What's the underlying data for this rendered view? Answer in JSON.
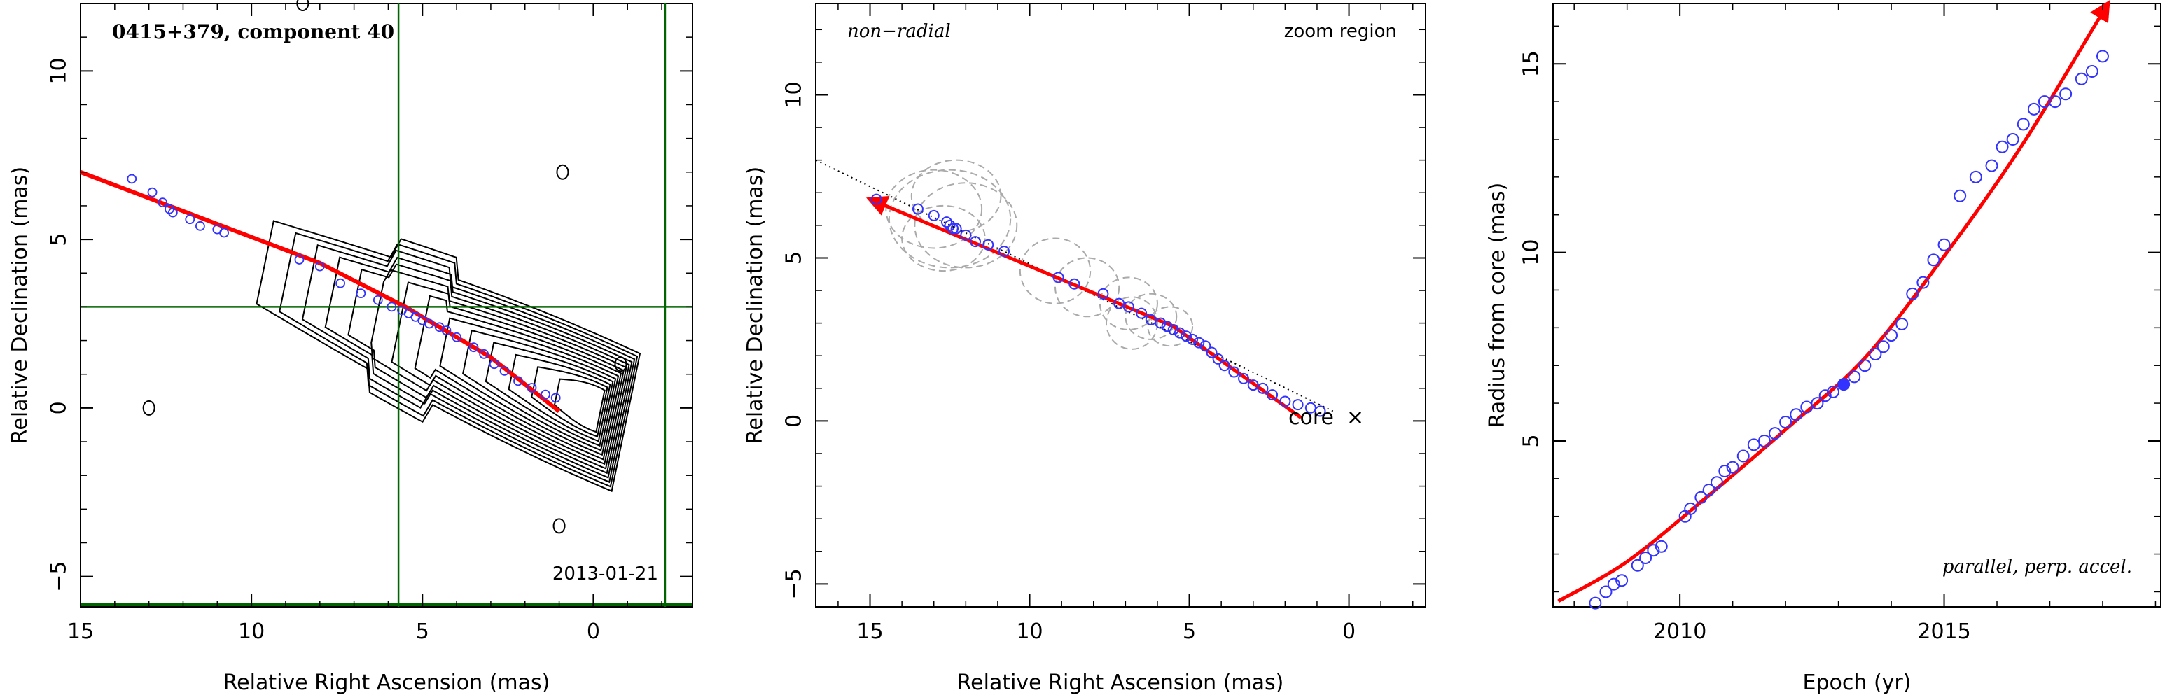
{
  "figure": {
    "panel1": {
      "title": "0415+379, component 40",
      "date_label": "2013-01-21",
      "xlabel": "Relative Right Ascension (mas)",
      "ylabel": "Relative Declination (mas)",
      "x_ticks": [
        "15",
        "10",
        "5",
        "0"
      ],
      "y_ticks": [
        "−5",
        "0",
        "5",
        "10"
      ]
    },
    "panel2": {
      "annot_left": "non−radial",
      "annot_right": "zoom region",
      "core_label": "core",
      "xlabel": "Relative Right Ascension (mas)",
      "ylabel": "Relative Declination (mas)",
      "x_ticks": [
        "15",
        "10",
        "5",
        "0"
      ],
      "y_ticks": [
        "−5",
        "0",
        "5",
        "10"
      ]
    },
    "panel3": {
      "annot": "parallel, perp. accel.",
      "xlabel": "Epoch (yr)",
      "ylabel": "Radius from core (mas)",
      "x_ticks": [
        "2010",
        "2015"
      ],
      "y_ticks": [
        "5",
        "10",
        "15"
      ]
    }
  },
  "colors": {
    "contour": "#000000",
    "fit_line": "#ff0000",
    "points": "#3333ff",
    "zoom_box": "#006400",
    "ellipses": "#aaaaaa"
  },
  "chart_data": [
    {
      "type": "scatter",
      "title": "0415+379, component 40",
      "xlabel": "Relative Right Ascension (mas)",
      "ylabel": "Relative Declination (mas)",
      "xlim": [
        15,
        -2.9
      ],
      "ylim": [
        -5.9,
        12
      ],
      "series": [
        {
          "x": [
            13.5,
            12.9,
            12.6,
            12.4,
            12.3,
            11.8,
            11.5,
            11.0,
            10.8,
            8.6,
            8.0,
            7.4,
            6.8,
            6.3,
            5.9,
            5.6,
            5.4,
            5.2,
            5.0,
            4.8,
            4.5,
            4.3,
            4.0,
            3.5,
            3.2,
            2.9,
            2.6,
            2.2,
            1.8,
            1.4,
            1.1
          ],
          "y": [
            6.8,
            6.4,
            6.1,
            5.9,
            5.8,
            5.6,
            5.4,
            5.3,
            5.2,
            4.4,
            4.2,
            3.7,
            3.4,
            3.2,
            3.0,
            2.9,
            2.8,
            2.7,
            2.6,
            2.5,
            2.4,
            2.3,
            2.1,
            1.8,
            1.6,
            1.3,
            1.1,
            0.8,
            0.6,
            0.4,
            0.3
          ]
        }
      ],
      "fit_line": {
        "x": [
          15,
          8,
          5.5,
          3,
          1.0
        ],
        "y": [
          7.0,
          4.3,
          3.0,
          1.5,
          -0.1
        ]
      },
      "zoom_region": {
        "x_left": 5.7,
        "x_right": -2.1,
        "y_bottom": -5.9,
        "y_top": 3.0
      }
    },
    {
      "type": "scatter",
      "xlabel": "Relative Right Ascension (mas)",
      "ylabel": "Relative Declination (mas)",
      "xlim": [
        16.7,
        -2.4
      ],
      "ylim": [
        -5.7,
        12.8
      ],
      "series": [
        {
          "x": [
            14.8,
            13.5,
            13.0,
            12.6,
            12.5,
            12.4,
            12.3,
            12.0,
            11.7,
            11.3,
            10.8,
            9.1,
            8.6,
            7.7,
            7.2,
            6.9,
            6.5,
            6.2,
            5.9,
            5.7,
            5.5,
            5.3,
            5.1,
            4.9,
            4.7,
            4.5,
            4.3,
            4.1,
            3.9,
            3.6,
            3.3,
            3.0,
            2.7,
            2.4,
            2.0,
            1.6,
            1.2,
            0.9
          ],
          "y": [
            6.8,
            6.5,
            6.3,
            6.1,
            6.0,
            5.9,
            5.9,
            5.7,
            5.5,
            5.4,
            5.2,
            4.4,
            4.2,
            3.9,
            3.6,
            3.5,
            3.3,
            3.1,
            3.0,
            2.9,
            2.8,
            2.7,
            2.6,
            2.5,
            2.4,
            2.3,
            2.1,
            1.9,
            1.7,
            1.5,
            1.3,
            1.1,
            1.0,
            0.8,
            0.6,
            0.5,
            0.4,
            0.3
          ]
        }
      ],
      "ellipses": [
        {
          "x": 12.5,
          "y": 6.2,
          "rx": 1.9,
          "ry": 1.5
        },
        {
          "x": 12.0,
          "y": 6.0,
          "rx": 1.6,
          "ry": 1.3
        },
        {
          "x": 13.0,
          "y": 6.5,
          "rx": 1.5,
          "ry": 1.2
        },
        {
          "x": 12.3,
          "y": 6.9,
          "rx": 1.4,
          "ry": 1.1
        },
        {
          "x": 12.7,
          "y": 5.6,
          "rx": 1.3,
          "ry": 1.0
        },
        {
          "x": 9.2,
          "y": 4.6,
          "rx": 1.1,
          "ry": 1.0
        },
        {
          "x": 8.2,
          "y": 4.1,
          "rx": 1.0,
          "ry": 0.9
        },
        {
          "x": 6.9,
          "y": 3.6,
          "rx": 0.9,
          "ry": 0.8
        },
        {
          "x": 6.2,
          "y": 3.2,
          "rx": 0.8,
          "ry": 0.7
        },
        {
          "x": 5.6,
          "y": 2.9,
          "rx": 0.7,
          "ry": 0.6
        },
        {
          "x": 6.8,
          "y": 3.0,
          "rx": 0.8,
          "ry": 0.8
        }
      ],
      "fit_line": {
        "x": [
          1.5,
          5.5,
          15.0
        ],
        "y": [
          0.1,
          2.9,
          6.8
        ]
      },
      "dotted_line": {
        "x": [
          0.5,
          16.7
        ],
        "y": [
          0.3,
          8.0
        ]
      },
      "core": {
        "x": 0.0,
        "y": 0.0
      }
    },
    {
      "type": "scatter",
      "xlabel": "Epoch (yr)",
      "ylabel": "Radius from core (mas)",
      "xlim": [
        2007.6,
        2019.1
      ],
      "ylim": [
        0.6,
        16.6
      ],
      "series": [
        {
          "x": [
            2008.4,
            2008.6,
            2008.75,
            2008.9,
            2009.2,
            2009.35,
            2009.5,
            2009.65,
            2010.1,
            2010.2,
            2010.4,
            2010.55,
            2010.7,
            2010.85,
            2011.0,
            2011.2,
            2011.4,
            2011.6,
            2011.8,
            2012.0,
            2012.2,
            2012.4,
            2012.6,
            2012.75,
            2012.9,
            2013.1,
            2013.3,
            2013.5,
            2013.7,
            2013.85,
            2014.0,
            2014.2,
            2014.4,
            2014.6,
            2014.8,
            2015.0,
            2015.3,
            2015.6,
            2015.9,
            2016.1,
            2016.3,
            2016.5,
            2016.7,
            2016.9,
            2017.1,
            2017.3,
            2017.6,
            2017.8,
            2018.0
          ],
          "y": [
            0.7,
            1.0,
            1.2,
            1.3,
            1.7,
            1.9,
            2.1,
            2.2,
            3.0,
            3.2,
            3.5,
            3.7,
            3.9,
            4.2,
            4.3,
            4.6,
            4.9,
            5.0,
            5.2,
            5.5,
            5.7,
            5.9,
            6.0,
            6.2,
            6.3,
            6.5,
            6.7,
            7.0,
            7.3,
            7.5,
            7.8,
            8.1,
            8.9,
            9.2,
            9.8,
            10.2,
            11.5,
            12.0,
            12.3,
            12.8,
            13.0,
            13.4,
            13.8,
            14.0,
            14.0,
            14.2,
            14.6,
            14.8,
            15.2
          ]
        }
      ],
      "fit_curve": {
        "x": [
          2007.7,
          2009.0,
          2010.5,
          2012.0,
          2013.5,
          2015.0,
          2016.5,
          2018.1
        ],
        "y": [
          0.75,
          1.8,
          3.5,
          5.3,
          7.2,
          9.9,
          12.9,
          16.6
        ]
      },
      "highlight": {
        "x": 2013.1,
        "y": 6.5
      }
    }
  ]
}
